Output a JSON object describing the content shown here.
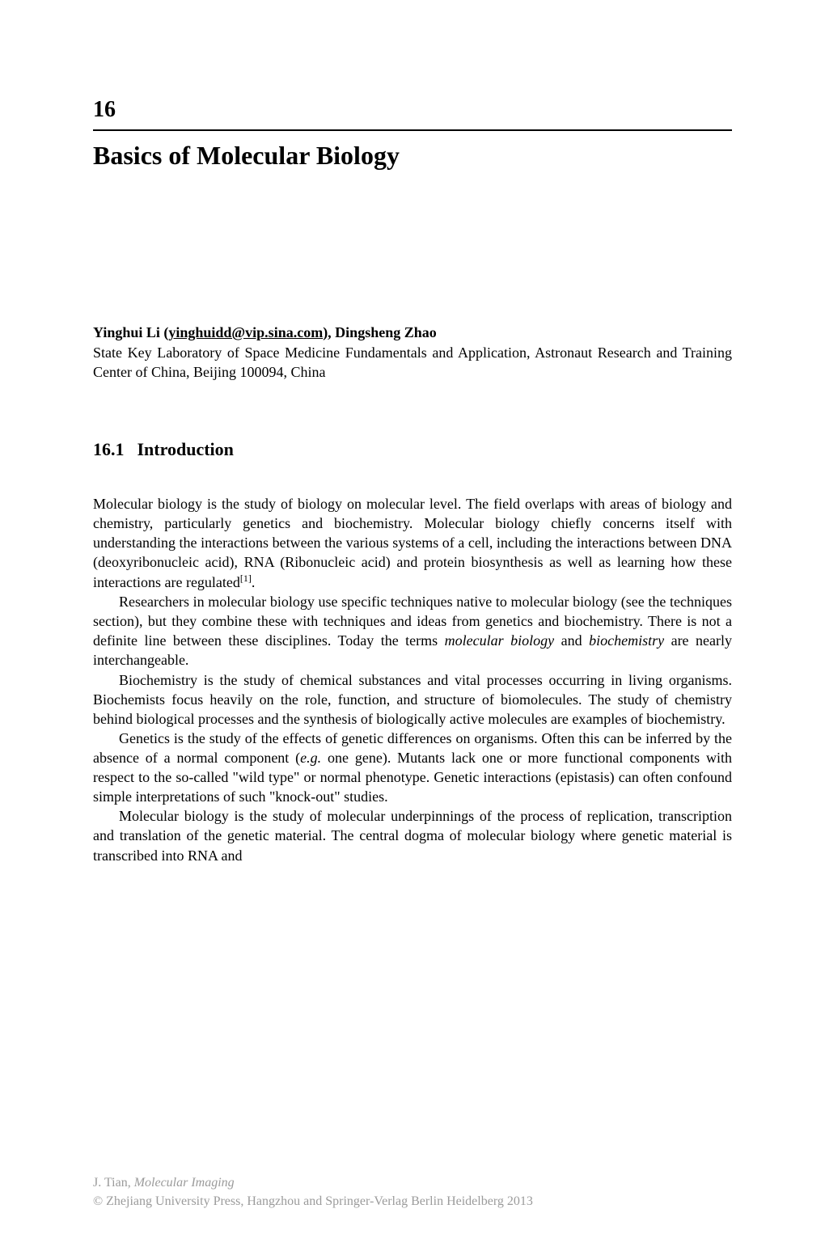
{
  "chapter": {
    "number": "16",
    "title": "Basics of Molecular Biology"
  },
  "authors": {
    "lead_name": "Yinghui Li",
    "lead_email": "yinghuidd@vip.sina.com",
    "trailing": "), Dingsheng Zhao",
    "affiliation": "State Key Laboratory of Space Medicine Fundamentals and Application, Astronaut Research and Training Center of China, Beijing 100094, China"
  },
  "section": {
    "number": "16.1",
    "title": "Introduction"
  },
  "paragraphs": {
    "p1_a": "Molecular biology is the study of biology on molecular level. The field overlaps with areas of biology and chemistry, particularly genetics and biochemistry. Molecular biology chiefly concerns itself with understanding the interactions between the various systems of a cell, including the interactions between DNA (deoxyribonucleic acid), RNA (Ribonucleic acid) and protein biosynthesis as well as learning how these interactions are regulated",
    "p1_ref": "[1]",
    "p1_b": ".",
    "p2_a": "Researchers in molecular biology use specific techniques native to molecular biology (see the techniques section), but they combine these with techniques and ideas from genetics and biochemistry. There is not a definite line between these disciplines. Today the terms ",
    "p2_i1": "molecular biology",
    "p2_b": " and ",
    "p2_i2": "biochemistry",
    "p2_c": " are nearly interchangeable.",
    "p3": "Biochemistry is the study of chemical substances and vital processes occurring in living organisms. Biochemists focus heavily on the role, function, and structure of biomolecules. The study of chemistry behind biological processes and the synthesis of biologically active molecules are examples of biochemistry.",
    "p4_a": "Genetics is the study of the effects of genetic differences on organisms. Often this can be inferred by the absence of a normal component (",
    "p4_i1": "e.g.",
    "p4_b": " one gene). Mutants lack one or more functional components with respect to the so-called \"wild type\" or normal phenotype. Genetic interactions (epistasis) can often confound simple interpretations of such \"knock-out\" studies.",
    "p5": "Molecular biology is the study of molecular underpinnings of the process of replication, transcription and translation of the genetic material. The central dogma of molecular biology where genetic material is transcribed into RNA and"
  },
  "footer": {
    "citation_author": "J. Tian, ",
    "citation_title": "Molecular Imaging",
    "copyright": "© Zhejiang University Press, Hangzhou and Springer-Verlag Berlin Heidelberg 2013"
  },
  "colors": {
    "text": "#000000",
    "footer_text": "#9b9b9b",
    "background": "#ffffff",
    "rule": "#000000"
  }
}
